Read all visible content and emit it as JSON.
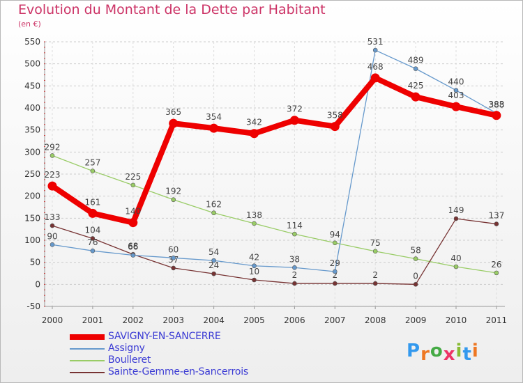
{
  "title": "Evolution du Montant de la Dette par Habitant",
  "subtitle": "(en €)",
  "chart_data": {
    "type": "line",
    "title": "Evolution du Montant de la Dette par Habitant",
    "ylabel": "(en €)",
    "x": [
      "2000",
      "2001",
      "2002",
      "2003",
      "2004",
      "2005",
      "2006",
      "2007",
      "2008",
      "2009",
      "2010",
      "2011"
    ],
    "ylim": [
      -50,
      550
    ],
    "yticks": [
      -50,
      0,
      50,
      100,
      150,
      200,
      250,
      300,
      350,
      400,
      450,
      500,
      550
    ],
    "grid": "horizontal dashed",
    "legend_position": "bottom-left",
    "series": [
      {
        "name": "SAVIGNY-EN-SANCERRE",
        "color": "#ee0000",
        "values": [
          223,
          161,
          140,
          365,
          354,
          342,
          372,
          358,
          468,
          425,
          403,
          383
        ],
        "labels": [
          "223",
          "161",
          "140",
          "365",
          "354",
          "342",
          "372",
          "358",
          "468",
          "425",
          "403",
          "383"
        ]
      },
      {
        "name": "Assigny",
        "color": "#6699cc",
        "values": [
          90,
          76,
          66,
          60,
          54,
          42,
          38,
          29,
          531,
          489,
          440,
          388
        ],
        "labels": [
          "90",
          "76",
          "66",
          "60",
          "54",
          "42",
          "38",
          "29",
          "531",
          "489",
          "440",
          "388"
        ]
      },
      {
        "name": "Boulleret",
        "color": "#99cc66",
        "values": [
          292,
          257,
          225,
          192,
          162,
          138,
          114,
          94,
          75,
          58,
          40,
          26
        ],
        "labels": [
          "292",
          "257",
          "225",
          "192",
          "162",
          "138",
          "114",
          "94",
          "75",
          "58",
          "40",
          "26"
        ]
      },
      {
        "name": "Sainte-Gemme-en-Sancerrois",
        "color": "#773333",
        "values": [
          133,
          104,
          68,
          37,
          24,
          10,
          2,
          2,
          2,
          0,
          149,
          137
        ],
        "labels": [
          "133",
          "104",
          "68",
          "37",
          "24",
          "10",
          "2",
          "2",
          "2",
          "0",
          "149",
          "137"
        ]
      }
    ]
  },
  "logo": {
    "letters": [
      "P",
      "r",
      "o",
      "x",
      "i",
      "t",
      "i"
    ],
    "colors": [
      "#3399ee",
      "#ee7722",
      "#44aa44",
      "#ee3366",
      "#88bb33",
      "#3399ee",
      "#ee7722"
    ]
  }
}
